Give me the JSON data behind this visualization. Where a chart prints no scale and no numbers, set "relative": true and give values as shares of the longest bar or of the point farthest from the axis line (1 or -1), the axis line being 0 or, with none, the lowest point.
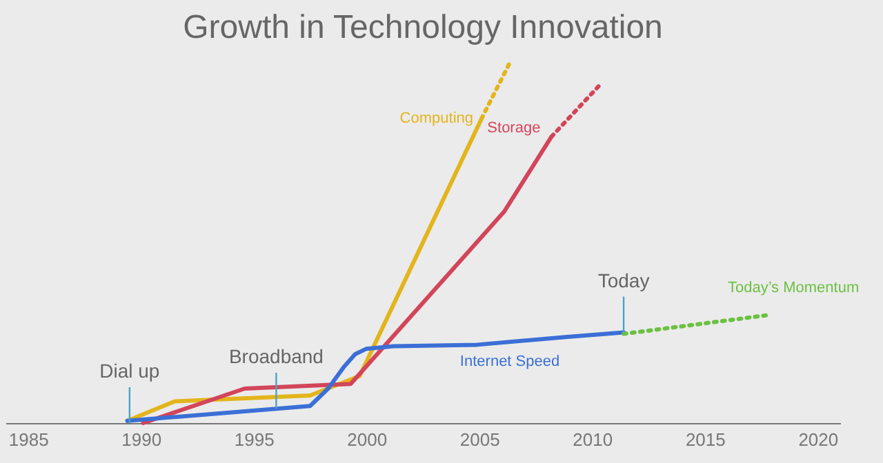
{
  "chart_data": {
    "type": "line",
    "title": "Growth in Technology Innovation",
    "relative": true,
    "xlim": [
      1984,
      2021
    ],
    "xticks": [
      1985,
      1990,
      1995,
      2000,
      2005,
      2010,
      2015,
      2020
    ],
    "grid": false,
    "marker": "none",
    "series": [
      {
        "name": "Computing",
        "color": "#e3b51c",
        "line_style": "solid",
        "x": [
          1989.4,
          1991.5,
          1997.5,
          1999.7,
          2005.1
        ],
        "values": [
          0.006,
          0.06,
          0.076,
          0.13,
          0.84
        ]
      },
      {
        "color": "#e3b51c",
        "line_style": "dotted",
        "x": [
          2005.1,
          2006.4
        ],
        "values": [
          0.84,
          1.0
        ]
      },
      {
        "name": "Storage",
        "color": "#d2455a",
        "line_style": "solid",
        "x": [
          1990.1,
          1994.6,
          1999.3,
          2006.1,
          2008.2
        ],
        "values": [
          0,
          0.095,
          0.108,
          0.583,
          0.79
        ]
      },
      {
        "color": "#d2455a",
        "line_style": "dotted",
        "x": [
          2008.2,
          2010.3
        ],
        "values": [
          0.79,
          0.93
        ]
      },
      {
        "name": "Internet Speed",
        "color": "#3b6fd6",
        "line_style": "solid",
        "x": [
          1989.4,
          1997.5,
          1998.3,
          1999.0,
          1999.5,
          2000.0,
          2001.2,
          2004.9,
          2008.8,
          2011.4
        ],
        "values": [
          0.006,
          0.047,
          0.095,
          0.155,
          0.19,
          0.205,
          0.212,
          0.216,
          0.237,
          0.25
        ]
      },
      {
        "name": "Today’s Momentum",
        "color": "#6cc043",
        "line_style": "dotted",
        "x": [
          2011.4,
          2017.7
        ],
        "values": [
          0.246,
          0.297
        ]
      }
    ],
    "annotations": [
      {
        "text": "Dial up",
        "x": 1989.5,
        "y": 0
      },
      {
        "text": "Broadband",
        "x": 1996,
        "y": 0.04
      },
      {
        "text": "Today",
        "x": 2011.4,
        "y": 0.25
      }
    ]
  }
}
